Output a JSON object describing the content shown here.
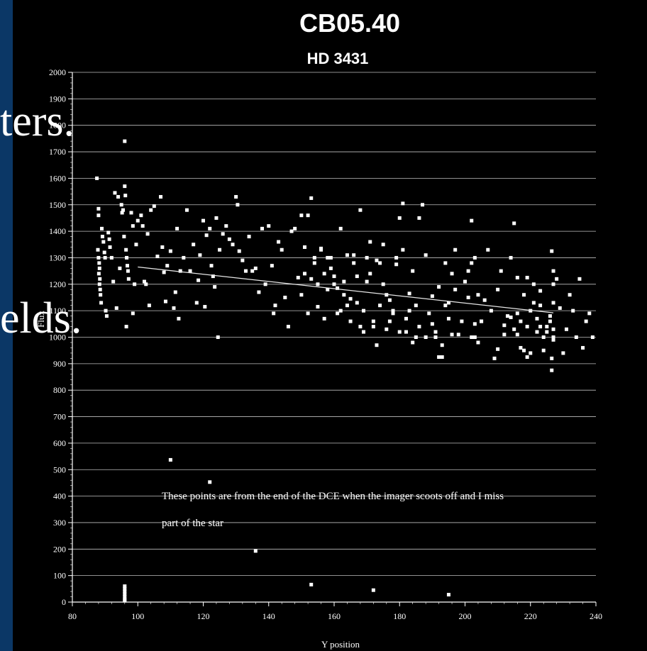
{
  "slide": {
    "background_color": "#0b3766",
    "text_fragments": [
      "ters.",
      "elds."
    ]
  },
  "chart_data": {
    "type": "scatter",
    "title": "CB05.40",
    "subtitle": "HD 3431",
    "xlabel": "Y position",
    "ylabel": "Flux",
    "xlim": [
      80,
      240
    ],
    "ylim": [
      0,
      2000
    ],
    "x_ticks": [
      80,
      100,
      120,
      140,
      160,
      180,
      200,
      220,
      240
    ],
    "y_ticks": [
      0,
      100,
      200,
      300,
      400,
      500,
      600,
      700,
      800,
      900,
      1000,
      1100,
      1200,
      1300,
      1400,
      1500,
      1600,
      1700,
      1800,
      1900,
      2000
    ],
    "grid": true,
    "background_color": "#000000",
    "point_color": "#ffffff",
    "annotation": [
      "These points are from the end of the DCE when the imager scoots off and I miss",
      "part of the star"
    ],
    "trendline": {
      "x": [
        100,
        227
      ],
      "y": [
        1265,
        1092
      ]
    },
    "outliers": [
      [
        96,
        60
      ],
      [
        96,
        50
      ],
      [
        96,
        40
      ],
      [
        96,
        30
      ],
      [
        96,
        20
      ],
      [
        96,
        10
      ],
      [
        96,
        5
      ],
      [
        110,
        537
      ],
      [
        122,
        453
      ],
      [
        136,
        193
      ],
      [
        153,
        66
      ],
      [
        172,
        45
      ],
      [
        195,
        28
      ]
    ],
    "points": [
      [
        87.5,
        1600
      ],
      [
        88,
        1485
      ],
      [
        88,
        1460
      ],
      [
        87.8,
        1330
      ],
      [
        88,
        1300
      ],
      [
        88.2,
        1280
      ],
      [
        88.3,
        1260
      ],
      [
        88.1,
        1240
      ],
      [
        88.4,
        1220
      ],
      [
        88.3,
        1200
      ],
      [
        88.5,
        1180
      ],
      [
        88.6,
        1160
      ],
      [
        88.8,
        1130
      ],
      [
        89,
        1410
      ],
      [
        89.2,
        1380
      ],
      [
        89.5,
        1360
      ],
      [
        89.8,
        1320
      ],
      [
        90,
        1300
      ],
      [
        90.2,
        1100
      ],
      [
        90.5,
        1080
      ],
      [
        91,
        1395
      ],
      [
        91.3,
        1370
      ],
      [
        91.5,
        1340
      ],
      [
        92,
        1300
      ],
      [
        92.5,
        1210
      ],
      [
        93,
        1545
      ],
      [
        93.5,
        1110
      ],
      [
        94,
        1530
      ],
      [
        94.5,
        1260
      ],
      [
        95,
        1500
      ],
      [
        95.2,
        1470
      ],
      [
        95.5,
        1480
      ],
      [
        95.8,
        1380
      ],
      [
        96,
        1570
      ],
      [
        96.2,
        1535
      ],
      [
        96.4,
        1330
      ],
      [
        96.6,
        1300
      ],
      [
        96.8,
        1270
      ],
      [
        97,
        1250
      ],
      [
        97.2,
        1220
      ],
      [
        96.5,
        1040
      ],
      [
        96,
        1740
      ],
      [
        98,
        1470
      ],
      [
        98.5,
        1420
      ],
      [
        98.5,
        1090
      ],
      [
        99,
        1200
      ],
      [
        99.5,
        1350
      ],
      [
        100,
        1440
      ],
      [
        101,
        1460
      ],
      [
        101.5,
        1420
      ],
      [
        102,
        1210
      ],
      [
        102.5,
        1200
      ],
      [
        103,
        1390
      ],
      [
        103.5,
        1120
      ],
      [
        104,
        1480
      ],
      [
        105,
        1495
      ],
      [
        106,
        1305
      ],
      [
        107,
        1530
      ],
      [
        107.5,
        1340
      ],
      [
        108,
        1245
      ],
      [
        108.5,
        1135
      ],
      [
        109,
        1270
      ],
      [
        110,
        1325
      ],
      [
        111,
        1110
      ],
      [
        111.5,
        1170
      ],
      [
        112,
        1410
      ],
      [
        112.5,
        1070
      ],
      [
        113,
        1250
      ],
      [
        114,
        1300
      ],
      [
        115,
        1480
      ],
      [
        116,
        1250
      ],
      [
        117,
        1350
      ],
      [
        118,
        1130
      ],
      [
        118.5,
        1215
      ],
      [
        119,
        1310
      ],
      [
        120,
        1440
      ],
      [
        120.5,
        1115
      ],
      [
        121,
        1385
      ],
      [
        122,
        1410
      ],
      [
        122.5,
        1270
      ],
      [
        123,
        1230
      ],
      [
        123.5,
        1190
      ],
      [
        124,
        1450
      ],
      [
        124.5,
        1000
      ],
      [
        125,
        1330
      ],
      [
        126,
        1390
      ],
      [
        127,
        1420
      ],
      [
        128,
        1370
      ],
      [
        129,
        1350
      ],
      [
        130,
        1530
      ],
      [
        130.5,
        1500
      ],
      [
        131,
        1325
      ],
      [
        132,
        1290
      ],
      [
        133,
        1250
      ],
      [
        134,
        1380
      ],
      [
        135,
        1250
      ],
      [
        136,
        1260
      ],
      [
        137,
        1170
      ],
      [
        138,
        1410
      ],
      [
        139,
        1200
      ],
      [
        140,
        1420
      ],
      [
        141,
        1270
      ],
      [
        141.5,
        1090
      ],
      [
        142,
        1120
      ],
      [
        143,
        1360
      ],
      [
        144,
        1330
      ],
      [
        145,
        1150
      ],
      [
        146,
        1040
      ],
      [
        147,
        1400
      ],
      [
        148,
        1410
      ],
      [
        149,
        1225
      ],
      [
        150,
        1460
      ],
      [
        151,
        1240
      ],
      [
        152,
        1460
      ],
      [
        153,
        1525
      ],
      [
        154,
        1300
      ],
      [
        155,
        1115
      ],
      [
        156,
        1335
      ],
      [
        157,
        1070
      ],
      [
        158,
        1300
      ],
      [
        159,
        1260
      ],
      [
        160,
        1230
      ],
      [
        161,
        1185
      ],
      [
        162,
        1410
      ],
      [
        163,
        1210
      ],
      [
        164,
        1310
      ],
      [
        165,
        1145
      ],
      [
        166,
        1310
      ],
      [
        167,
        1230
      ],
      [
        168,
        1480
      ],
      [
        169,
        1100
      ],
      [
        170,
        1210
      ],
      [
        171,
        1360
      ],
      [
        172,
        1040
      ],
      [
        173,
        1290
      ],
      [
        174,
        1120
      ],
      [
        175,
        1350
      ],
      [
        176,
        1030
      ],
      [
        177,
        1140
      ],
      [
        178,
        1100
      ],
      [
        179,
        1300
      ],
      [
        180,
        1020
      ],
      [
        181,
        1330
      ],
      [
        182,
        1070
      ],
      [
        183,
        1165
      ],
      [
        184,
        1250
      ],
      [
        185,
        1120
      ],
      [
        186,
        1450
      ],
      [
        187,
        1500
      ],
      [
        188,
        1310
      ],
      [
        189,
        1090
      ],
      [
        190,
        1155
      ],
      [
        191,
        1000
      ],
      [
        192,
        1190
      ],
      [
        193,
        970
      ],
      [
        194,
        1280
      ],
      [
        195,
        1130
      ],
      [
        196,
        1240
      ],
      [
        197,
        1180
      ],
      [
        198,
        1010
      ],
      [
        199,
        1060
      ],
      [
        200,
        1210
      ],
      [
        201,
        1150
      ],
      [
        202,
        1280
      ],
      [
        203,
        1000
      ],
      [
        204,
        1160
      ],
      [
        205,
        1060
      ],
      [
        206,
        1140
      ],
      [
        207,
        1330
      ],
      [
        208,
        1100
      ],
      [
        209,
        920
      ],
      [
        210,
        1180
      ],
      [
        211,
        1250
      ],
      [
        212,
        1010
      ],
      [
        213,
        1080
      ],
      [
        214,
        1300
      ],
      [
        215,
        1430
      ],
      [
        216,
        1090
      ],
      [
        217,
        960
      ],
      [
        218,
        1160
      ],
      [
        219,
        1040
      ],
      [
        220,
        1100
      ],
      [
        221,
        1130
      ],
      [
        222,
        1020
      ],
      [
        223,
        1120
      ],
      [
        224,
        950
      ],
      [
        225,
        1040
      ],
      [
        226,
        1080
      ],
      [
        227,
        1000
      ],
      [
        228,
        1220
      ],
      [
        229,
        1110
      ],
      [
        230,
        940
      ],
      [
        231,
        1030
      ],
      [
        232,
        1160
      ],
      [
        233,
        1100
      ],
      [
        234,
        1000
      ],
      [
        235,
        1220
      ],
      [
        236,
        960
      ],
      [
        237,
        1060
      ],
      [
        238,
        1090
      ],
      [
        239,
        1000
      ],
      [
        216,
        1225
      ],
      [
        219,
        1225
      ],
      [
        221,
        1200
      ],
      [
        223,
        1175
      ],
      [
        222,
        1070
      ],
      [
        223,
        1040
      ],
      [
        224,
        1000
      ],
      [
        225,
        1020
      ],
      [
        226,
        1060
      ],
      [
        226.5,
        1325
      ],
      [
        227,
        1250
      ],
      [
        227,
        1200
      ],
      [
        227,
        1130
      ],
      [
        227,
        1030
      ],
      [
        227,
        990
      ],
      [
        226.5,
        920
      ],
      [
        226.5,
        875
      ],
      [
        218,
        950
      ],
      [
        220,
        940
      ],
      [
        219,
        925
      ],
      [
        212,
        1045
      ],
      [
        210,
        955
      ],
      [
        214,
        1075
      ],
      [
        215,
        1030
      ],
      [
        216,
        1010
      ],
      [
        217,
        1060
      ],
      [
        205,
        1060
      ],
      [
        204,
        980
      ],
      [
        203,
        1050
      ],
      [
        202,
        1000
      ],
      [
        201,
        1250
      ],
      [
        202,
        1440
      ],
      [
        203,
        1300
      ],
      [
        197,
        1330
      ],
      [
        196,
        1010
      ],
      [
        195,
        1070
      ],
      [
        194,
        1120
      ],
      [
        193,
        925
      ],
      [
        192,
        925
      ],
      [
        191,
        1020
      ],
      [
        190,
        1050
      ],
      [
        188,
        1000
      ],
      [
        186,
        1040
      ],
      [
        185,
        1000
      ],
      [
        184,
        980
      ],
      [
        183,
        1100
      ],
      [
        182,
        1020
      ],
      [
        181,
        1505
      ],
      [
        180,
        1450
      ],
      [
        179,
        1275
      ],
      [
        178,
        1090
      ],
      [
        177,
        1060
      ],
      [
        176,
        1160
      ],
      [
        175,
        1200
      ],
      [
        174,
        1280
      ],
      [
        173,
        970
      ],
      [
        172,
        1060
      ],
      [
        171,
        1240
      ],
      [
        170,
        1300
      ],
      [
        169,
        1020
      ],
      [
        168,
        1040
      ],
      [
        167,
        1130
      ],
      [
        166,
        1280
      ],
      [
        165,
        1060
      ],
      [
        164,
        1120
      ],
      [
        163,
        1160
      ],
      [
        162,
        1100
      ],
      [
        161,
        1090
      ],
      [
        160,
        1200
      ],
      [
        159,
        1300
      ],
      [
        158,
        1180
      ],
      [
        157,
        1240
      ],
      [
        156,
        1330
      ],
      [
        155,
        1200
      ],
      [
        154,
        1280
      ],
      [
        153,
        1220
      ],
      [
        152,
        1090
      ],
      [
        151,
        1340
      ],
      [
        150,
        1160
      ]
    ]
  }
}
